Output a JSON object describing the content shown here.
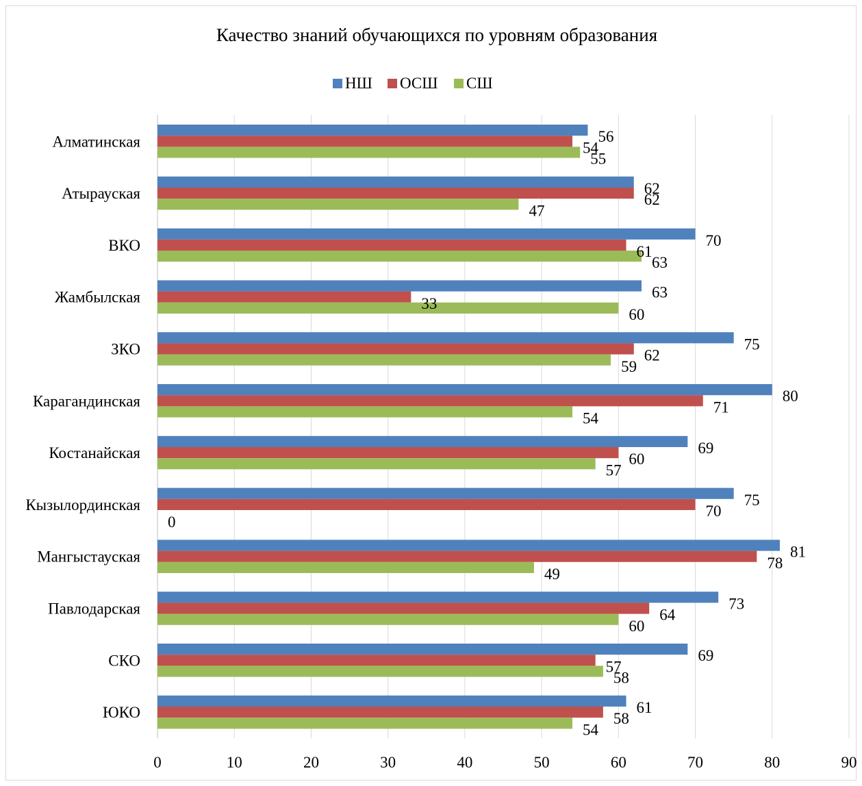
{
  "chart_data": {
    "type": "bar",
    "orientation": "horizontal",
    "title": "Качество знаний обучающихся по уровням образования",
    "categories": [
      "Алматинская",
      "Атырауская",
      "ВКО",
      "Жамбылская",
      "ЗКО",
      "Карагандинская",
      "Костанайская",
      "Кызылординская",
      "Мангыстауская",
      "Павлодарская",
      "СКО",
      "ЮКО"
    ],
    "series": [
      {
        "name": "НШ",
        "color": "#4f81bd",
        "values": [
          56,
          62,
          70,
          63,
          75,
          80,
          69,
          75,
          81,
          73,
          69,
          61
        ]
      },
      {
        "name": "ОСШ",
        "color": "#c0504d",
        "values": [
          54,
          62,
          61,
          33,
          62,
          71,
          60,
          70,
          78,
          64,
          57,
          58
        ]
      },
      {
        "name": "СШ",
        "color": "#9bbb59",
        "values": [
          55,
          47,
          63,
          60,
          59,
          54,
          57,
          0,
          49,
          60,
          58,
          54
        ]
      }
    ],
    "xlim": [
      0,
      90
    ],
    "xticks": [
      "0",
      "10",
      "20",
      "30",
      "40",
      "50",
      "60",
      "70",
      "80",
      "90"
    ],
    "grid": true,
    "legend": "top"
  }
}
